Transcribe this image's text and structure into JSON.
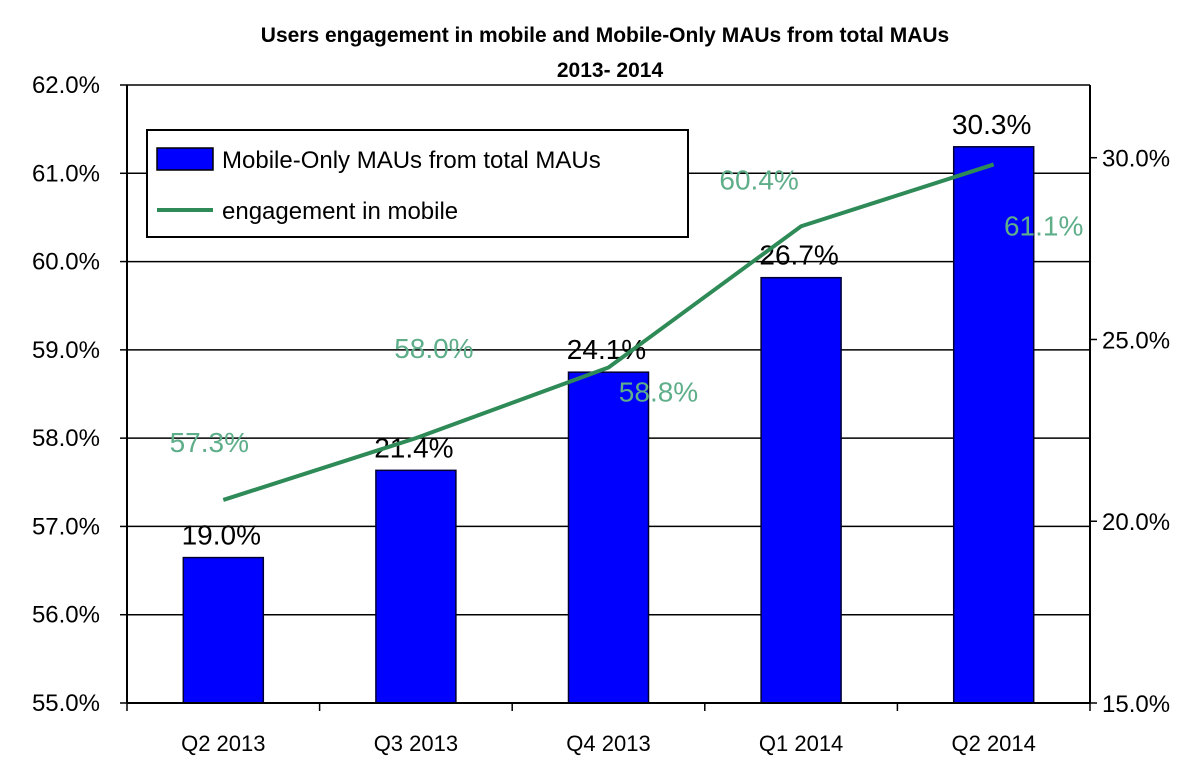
{
  "chart_data": {
    "type": "bar+line",
    "title": "Users engagement in mobile and Mobile-Only MAUs from total MAUs",
    "subtitle": "2013- 2014",
    "categories": [
      "Q2 2013",
      "Q3 2013",
      "Q4 2013",
      "Q1 2014",
      "Q2 2014"
    ],
    "series": [
      {
        "name": "Mobile-Only MAUs from total MAUs",
        "type": "bar",
        "axis": "right",
        "values": [
          19.0,
          21.4,
          24.1,
          26.7,
          30.3
        ],
        "labels": [
          "19.0%",
          "21.4%",
          "24.1%",
          "26.7%",
          "30.3%"
        ],
        "color": "#0000ff"
      },
      {
        "name": "engagement in mobile",
        "type": "line",
        "axis": "left",
        "values": [
          57.3,
          58.0,
          58.8,
          60.4,
          61.1
        ],
        "labels": [
          "57.3%",
          "58.0%",
          "58.8%",
          "60.4%",
          "61.1%"
        ],
        "color": "#2e8b57"
      }
    ],
    "left_axis": {
      "ylim": [
        55,
        62
      ],
      "ticks": [
        "55.0%",
        "56.0%",
        "57.0%",
        "58.0%",
        "59.0%",
        "60.0%",
        "61.0%",
        "62.0%"
      ]
    },
    "right_axis": {
      "ylim": [
        15,
        32
      ],
      "ticks": [
        "15.0%",
        "20.0%",
        "25.0%",
        "30.0%"
      ],
      "tick_values": [
        15,
        20,
        25,
        30
      ]
    },
    "grid": true,
    "legend": "top-left"
  }
}
